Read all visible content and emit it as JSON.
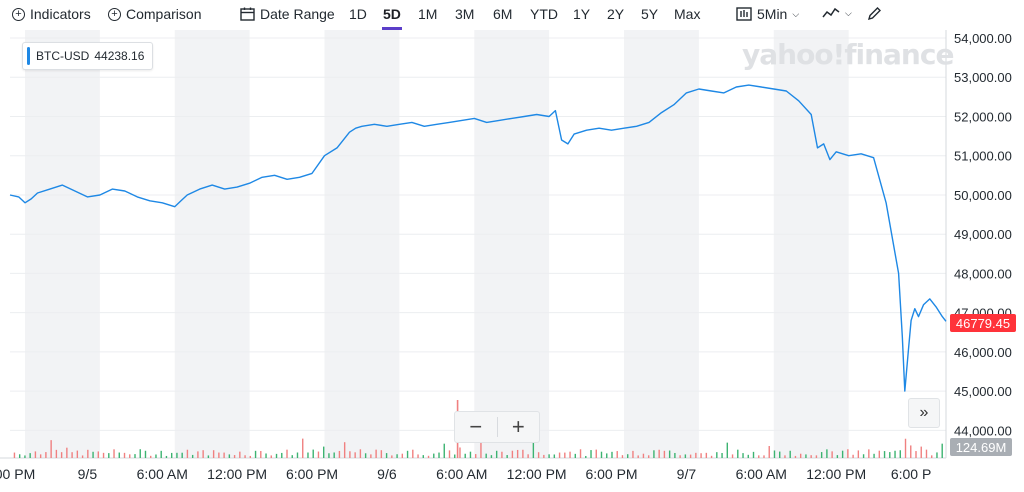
{
  "toolbar": {
    "indicators_label": "Indicators",
    "comparison_label": "Comparison",
    "date_range_label": "Date Range",
    "ranges": [
      "1D",
      "5D",
      "1M",
      "3M",
      "6M",
      "YTD",
      "1Y",
      "2Y",
      "5Y",
      "Max"
    ],
    "active_range": "5D",
    "interval_label": "5Min",
    "accent_color": "#5b3ec9"
  },
  "legend": {
    "symbol": "BTC-USD",
    "value": "44238.16"
  },
  "watermark": "yahoo!finance",
  "current_price_label": "46779.45",
  "volume_label": "124.69M",
  "zoom": {
    "minus": "−",
    "plus": "+"
  },
  "scroll_icon": "»",
  "chart_data": {
    "type": "line",
    "series_color": "#1e88e5",
    "ylim": [
      43500,
      54000
    ],
    "y_ticks": [
      44000,
      45000,
      46000,
      47000,
      48000,
      49000,
      50000,
      51000,
      52000,
      53000,
      54000
    ],
    "y_tick_labels": [
      "44,000.00",
      "45,000.00",
      "46,000.00",
      "47,000.00",
      "48,000.00",
      "49,000.00",
      "50,000.00",
      "51,000.00",
      "52,000.00",
      "53,000.00",
      "54,000.00"
    ],
    "x_labels": [
      {
        "label": "00 PM",
        "t": 0.2
      },
      {
        "label": "9/5",
        "t": 6
      },
      {
        "label": "6:00 AM",
        "t": 12
      },
      {
        "label": "12:00 PM",
        "t": 18
      },
      {
        "label": "6:00 PM",
        "t": 24
      },
      {
        "label": "9/6",
        "t": 30
      },
      {
        "label": "6:00 AM",
        "t": 36
      },
      {
        "label": "12:00 PM",
        "t": 42
      },
      {
        "label": "6:00 PM",
        "t": 48
      },
      {
        "label": "9/7",
        "t": 54
      },
      {
        "label": "6:00 AM",
        "t": 60
      },
      {
        "label": "12:00 PM",
        "t": 66
      },
      {
        "label": "6:00 P",
        "t": 72
      }
    ],
    "x_range": [
      -0.2,
      74.8
    ],
    "shaded_bands": [
      [
        1,
        7
      ],
      [
        13,
        19
      ],
      [
        25,
        31
      ],
      [
        37,
        43
      ],
      [
        49,
        55
      ],
      [
        61,
        67
      ]
    ],
    "x": [
      -0.2,
      0.5,
      1,
      1.5,
      2,
      3,
      4,
      5,
      6,
      7,
      8,
      9,
      10,
      11,
      12,
      13,
      13.5,
      14,
      15,
      16,
      17,
      18,
      19,
      20,
      21,
      22,
      23,
      24,
      25,
      26,
      27,
      27.5,
      28,
      29,
      30,
      31,
      32,
      33,
      34,
      35,
      36,
      37,
      38,
      39,
      40,
      41,
      42,
      43,
      43.5,
      44,
      44.5,
      45,
      46,
      47,
      48,
      49,
      50,
      51,
      52,
      53,
      54,
      55,
      56,
      57,
      58,
      59,
      60,
      61,
      62,
      63,
      64,
      64.5,
      65,
      65.5,
      66,
      67,
      68,
      69,
      70,
      71,
      71.3,
      71.5,
      71.8,
      72,
      72.3,
      72.6,
      73,
      73.5,
      74,
      74.5,
      74.8
    ],
    "y": [
      50000,
      49950,
      49800,
      49900,
      50050,
      50150,
      50250,
      50100,
      49950,
      50000,
      50150,
      50100,
      49950,
      49850,
      49800,
      49700,
      49850,
      50000,
      50150,
      50250,
      50150,
      50200,
      50300,
      50450,
      50500,
      50400,
      50450,
      50550,
      51000,
      51200,
      51600,
      51700,
      51750,
      51800,
      51750,
      51800,
      51850,
      51750,
      51800,
      51850,
      51900,
      51950,
      51850,
      51900,
      51950,
      52000,
      52050,
      52000,
      52150,
      51400,
      51300,
      51550,
      51650,
      51700,
      51650,
      51700,
      51750,
      51850,
      52100,
      52300,
      52600,
      52700,
      52650,
      52600,
      52750,
      52800,
      52750,
      52700,
      52650,
      52400,
      52050,
      51200,
      51300,
      50900,
      51100,
      51000,
      51050,
      50950,
      49800,
      48000,
      46400,
      45000,
      46100,
      46800,
      47100,
      46900,
      47200,
      47350,
      47150,
      46900,
      46780
    ],
    "volume": {
      "max_label": "124.69M",
      "spike_t": 35.6,
      "spike_value": 118
    }
  }
}
